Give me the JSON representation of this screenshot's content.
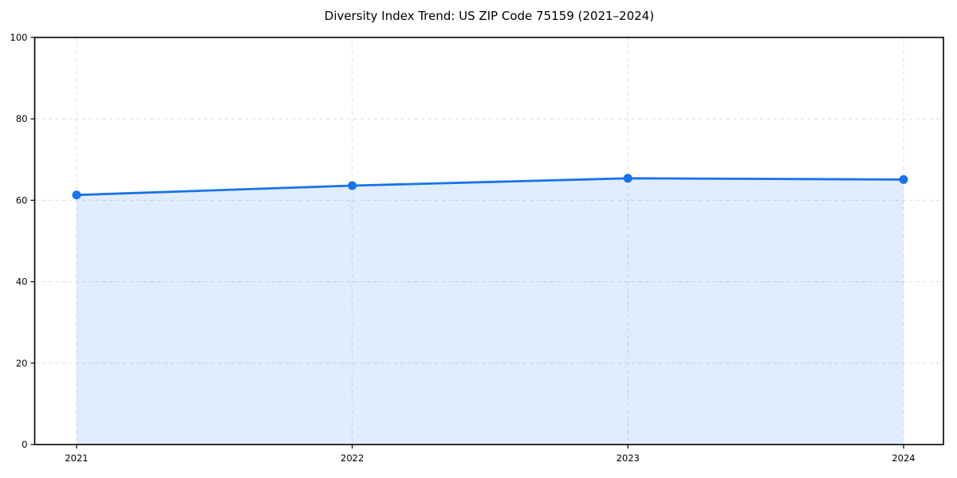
{
  "chart_data": {
    "type": "area",
    "title": "Diversity Index Trend: US ZIP Code 75159 (2021–2024)",
    "x": [
      "2021",
      "2022",
      "2023",
      "2024"
    ],
    "values": [
      61.3,
      63.6,
      65.4,
      65.1
    ],
    "xlabel": "",
    "ylabel": "",
    "ylim": [
      0,
      100
    ],
    "yticks": [
      0,
      20,
      40,
      60,
      80,
      100
    ],
    "grid": true,
    "grid_style": "dashed",
    "legend": "none",
    "marker": "circle",
    "colors": {
      "line": "#1a73e8",
      "marker": "#1a73e8",
      "fill": "rgba(26,115,232,0.13)",
      "grid": "#dcdcdc",
      "axis": "#000000",
      "text": "#000000",
      "background": "#ffffff"
    }
  }
}
